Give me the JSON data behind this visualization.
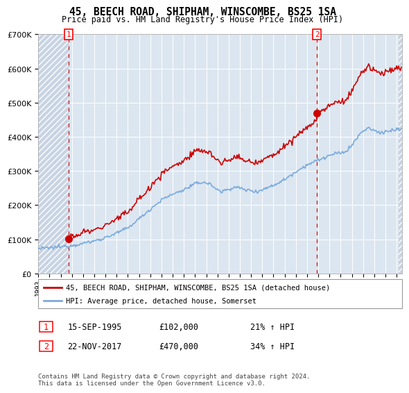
{
  "title": "45, BEECH ROAD, SHIPHAM, WINSCOMBE, BS25 1SA",
  "subtitle": "Price paid vs. HM Land Registry's House Price Index (HPI)",
  "legend_line1": "45, BEECH ROAD, SHIPHAM, WINSCOMBE, BS25 1SA (detached house)",
  "legend_line2": "HPI: Average price, detached house, Somerset",
  "sale1_date": "15-SEP-1995",
  "sale1_price": 102000,
  "sale1_hpi": "21% ↑ HPI",
  "sale2_date": "22-NOV-2017",
  "sale2_price": 470000,
  "sale2_hpi": "34% ↑ HPI",
  "footnote": "Contains HM Land Registry data © Crown copyright and database right 2024.\nThis data is licensed under the Open Government Licence v3.0.",
  "hpi_color": "#7aaadd",
  "price_color": "#cc0000",
  "plot_bg_color": "#dce6f0",
  "hatch_color": "#c8d4e4",
  "grid_color": "#ffffff",
  "ylim": [
    0,
    700000
  ],
  "yticks": [
    0,
    100000,
    200000,
    300000,
    400000,
    500000,
    600000,
    700000
  ],
  "xlim_start": 1993.0,
  "xlim_end": 2025.5,
  "sale1_year_f": 1995.708,
  "sale2_year_f": 2017.875
}
